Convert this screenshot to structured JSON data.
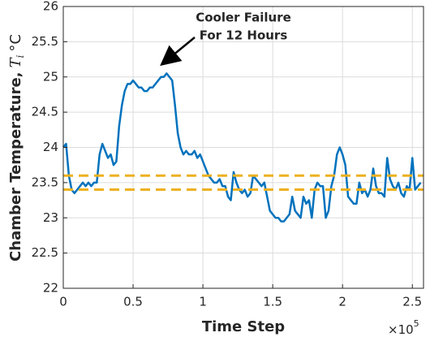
{
  "chart_data": {
    "type": "line",
    "y_label": {
      "text": "Chamber Temperature,",
      "symbol": "T",
      "subscript": "i",
      "unit": "°C"
    },
    "x_label": "Time Step",
    "x_multiplier": {
      "base": "×10",
      "exponent": "5"
    },
    "annotation": [
      "Cooler Failure",
      "For 12 Hours"
    ],
    "color": "#0072BD",
    "grid": true,
    "xlim": [
      0,
      258000
    ],
    "ylim": [
      22,
      26
    ],
    "xticks": [
      0,
      {
        "value": 50000,
        "label": "0.5"
      },
      {
        "value": 100000,
        "label": "1"
      },
      {
        "value": 150000,
        "label": "1.5"
      },
      {
        "value": 200000,
        "label": "2"
      },
      {
        "value": 250000,
        "label": "2.5"
      }
    ],
    "yticks": [
      22,
      22.5,
      23,
      23.5,
      24,
      24.5,
      25,
      25.5,
      26
    ],
    "reference_lines": [
      {
        "value": 23.4,
        "color": "#EDB120"
      },
      {
        "value": 23.6,
        "color": "#EDB120"
      }
    ],
    "x": [
      0,
      2000,
      4000,
      6000,
      8000,
      10000,
      12000,
      14000,
      16000,
      18000,
      20000,
      22000,
      24000,
      26000,
      28000,
      30000,
      32000,
      34000,
      36000,
      38000,
      40000,
      42000,
      44000,
      46000,
      48000,
      50000,
      52000,
      54000,
      56000,
      58000,
      60000,
      62000,
      64000,
      66000,
      68000,
      70000,
      72000,
      74000,
      76000,
      78000,
      80000,
      82000,
      84000,
      86000,
      88000,
      90000,
      92000,
      94000,
      96000,
      98000,
      100000,
      102000,
      104000,
      106000,
      108000,
      110000,
      112000,
      114000,
      116000,
      118000,
      120000,
      122000,
      124000,
      126000,
      128000,
      130000,
      132000,
      134000,
      136000,
      138000,
      140000,
      142000,
      144000,
      146000,
      148000,
      150000,
      152000,
      154000,
      156000,
      158000,
      160000,
      162000,
      164000,
      166000,
      168000,
      170000,
      172000,
      174000,
      176000,
      178000,
      180000,
      182000,
      184000,
      186000,
      188000,
      190000,
      192000,
      194000,
      196000,
      198000,
      200000,
      202000,
      204000,
      206000,
      208000,
      210000,
      212000,
      214000,
      216000,
      218000,
      220000,
      222000,
      224000,
      226000,
      228000,
      230000,
      232000,
      234000,
      236000,
      238000,
      240000,
      242000,
      244000,
      246000,
      248000,
      250000,
      252000,
      254000,
      256000
    ],
    "values": [
      24.0,
      24.05,
      23.6,
      23.4,
      23.35,
      23.4,
      23.45,
      23.5,
      23.45,
      23.5,
      23.45,
      23.5,
      23.5,
      23.9,
      24.05,
      23.95,
      23.85,
      23.9,
      23.75,
      23.8,
      24.3,
      24.6,
      24.8,
      24.9,
      24.9,
      24.95,
      24.9,
      24.85,
      24.85,
      24.8,
      24.8,
      24.85,
      24.85,
      24.9,
      24.95,
      25.0,
      25.0,
      25.05,
      25.0,
      24.95,
      24.6,
      24.2,
      24.0,
      23.9,
      23.95,
      23.9,
      23.9,
      23.95,
      23.85,
      23.9,
      23.8,
      23.7,
      23.6,
      23.55,
      23.5,
      23.5,
      23.55,
      23.45,
      23.45,
      23.3,
      23.25,
      23.65,
      23.5,
      23.4,
      23.35,
      23.4,
      23.3,
      23.35,
      23.6,
      23.55,
      23.5,
      23.45,
      23.5,
      23.3,
      23.1,
      23.05,
      23.0,
      23.0,
      22.95,
      22.95,
      23.0,
      23.05,
      23.3,
      23.1,
      23.05,
      23.0,
      23.3,
      23.2,
      23.25,
      23.0,
      23.4,
      23.5,
      23.45,
      23.45,
      23.0,
      23.1,
      23.45,
      23.6,
      23.9,
      24.0,
      23.9,
      23.75,
      23.3,
      23.25,
      23.2,
      23.2,
      23.5,
      23.35,
      23.4,
      23.3,
      23.4,
      23.7,
      23.45,
      23.35,
      23.35,
      23.3,
      23.85,
      23.55,
      23.45,
      23.4,
      23.5,
      23.35,
      23.3,
      23.45,
      23.4,
      23.85,
      23.4,
      23.45,
      23.5
    ]
  }
}
